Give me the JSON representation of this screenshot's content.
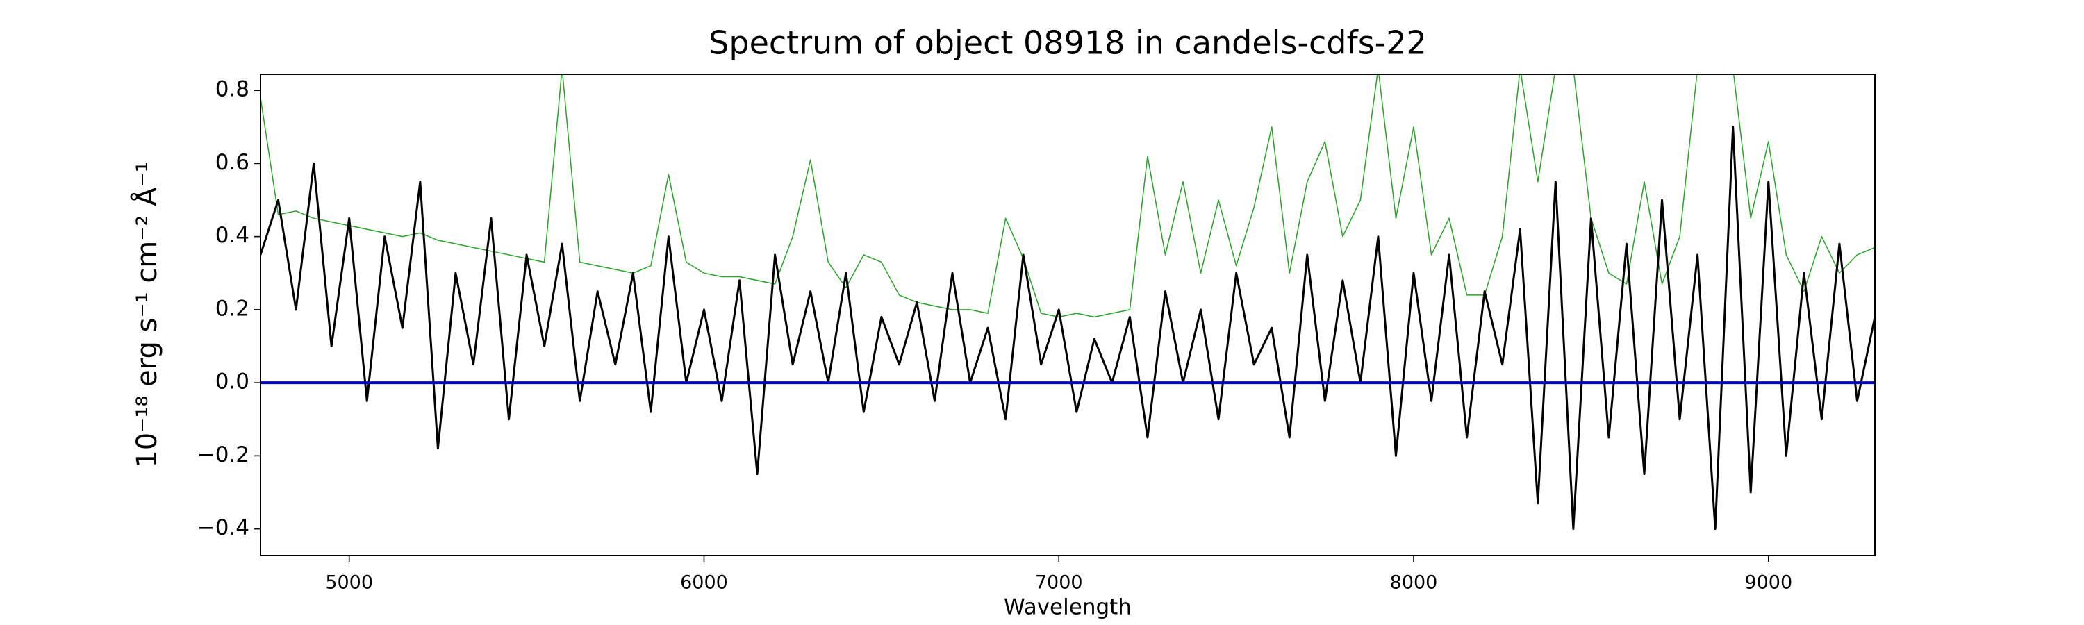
{
  "chart_data": {
    "type": "line",
    "title": "Spectrum of object 08918 in candels-cdfs-22",
    "x_label": "Wavelength",
    "y_label": "10⁻¹⁸ erg s⁻¹ cm⁻² Å⁻¹",
    "x": [
      4750,
      4800,
      4850,
      4900,
      4950,
      5000,
      5050,
      5100,
      5150,
      5200,
      5250,
      5300,
      5350,
      5400,
      5450,
      5500,
      5550,
      5600,
      5650,
      5700,
      5750,
      5800,
      5850,
      5900,
      5950,
      6000,
      6050,
      6100,
      6150,
      6200,
      6250,
      6300,
      6350,
      6400,
      6450,
      6500,
      6550,
      6600,
      6650,
      6700,
      6750,
      6800,
      6850,
      6900,
      6950,
      7000,
      7050,
      7100,
      7150,
      7200,
      7250,
      7300,
      7350,
      7400,
      7450,
      7500,
      7550,
      7600,
      7650,
      7700,
      7750,
      7800,
      7850,
      7900,
      7950,
      8000,
      8050,
      8100,
      8150,
      8200,
      8250,
      8300,
      8350,
      8400,
      8450,
      8500,
      8550,
      8600,
      8650,
      8700,
      8750,
      8800,
      8850,
      8900,
      8950,
      9000,
      9050,
      9100,
      9150,
      9200,
      9250,
      9300
    ],
    "series": [
      {
        "color": "#2ca02c",
        "values": [
          0.78,
          0.46,
          0.47,
          0.45,
          0.44,
          0.43,
          0.42,
          0.41,
          0.4,
          0.41,
          0.39,
          0.38,
          0.37,
          0.36,
          0.35,
          0.34,
          0.33,
          0.86,
          0.33,
          0.32,
          0.31,
          0.3,
          0.32,
          0.57,
          0.33,
          0.3,
          0.29,
          0.29,
          0.28,
          0.27,
          0.4,
          0.61,
          0.33,
          0.26,
          0.35,
          0.33,
          0.24,
          0.22,
          0.21,
          0.2,
          0.2,
          0.19,
          0.45,
          0.34,
          0.19,
          0.18,
          0.19,
          0.18,
          0.19,
          0.2,
          0.62,
          0.35,
          0.55,
          0.3,
          0.5,
          0.32,
          0.48,
          0.7,
          0.3,
          0.55,
          0.66,
          0.4,
          0.5,
          0.86,
          0.45,
          0.7,
          0.35,
          0.45,
          0.24,
          0.24,
          0.4,
          0.86,
          0.55,
          0.86,
          0.86,
          0.45,
          0.3,
          0.27,
          0.55,
          0.27,
          0.4,
          0.86,
          0.86,
          0.86,
          0.45,
          0.66,
          0.35,
          0.25,
          0.4,
          0.3,
          0.35,
          0.37
        ]
      },
      {
        "color": "#000000",
        "values": [
          0.35,
          0.5,
          0.2,
          0.6,
          0.1,
          0.45,
          -0.05,
          0.4,
          0.15,
          0.55,
          -0.18,
          0.3,
          0.05,
          0.45,
          -0.1,
          0.35,
          0.1,
          0.38,
          -0.05,
          0.25,
          0.05,
          0.3,
          -0.08,
          0.4,
          0.0,
          0.2,
          -0.05,
          0.28,
          -0.25,
          0.35,
          0.05,
          0.25,
          0.0,
          0.3,
          -0.08,
          0.18,
          0.05,
          0.22,
          -0.05,
          0.3,
          0.0,
          0.15,
          -0.1,
          0.35,
          0.05,
          0.2,
          -0.08,
          0.12,
          0.0,
          0.18,
          -0.15,
          0.25,
          0.0,
          0.2,
          -0.1,
          0.3,
          0.05,
          0.15,
          -0.15,
          0.35,
          -0.05,
          0.28,
          0.0,
          0.4,
          -0.2,
          0.3,
          -0.05,
          0.35,
          -0.15,
          0.25,
          0.05,
          0.42,
          -0.33,
          0.55,
          -0.4,
          0.45,
          -0.15,
          0.38,
          -0.25,
          0.5,
          -0.1,
          0.35,
          -0.4,
          0.7,
          -0.3,
          0.55,
          -0.2,
          0.3,
          -0.1,
          0.38,
          -0.05,
          0.18
        ]
      }
    ],
    "hlines": [
      {
        "y": 0,
        "color": "#0000cc"
      }
    ],
    "xlim": [
      4750,
      9300
    ],
    "xticks": [
      5000,
      6000,
      7000,
      8000,
      9000
    ],
    "ylim": [
      -0.473,
      0.844
    ],
    "yticks": [
      {
        "value": -0.4,
        "label": "−0.4"
      },
      {
        "value": -0.2,
        "label": "−0.2"
      },
      {
        "value": 0,
        "label": "0.0"
      },
      0.2,
      0.4,
      0.6,
      0.8
    ],
    "grid": false
  }
}
